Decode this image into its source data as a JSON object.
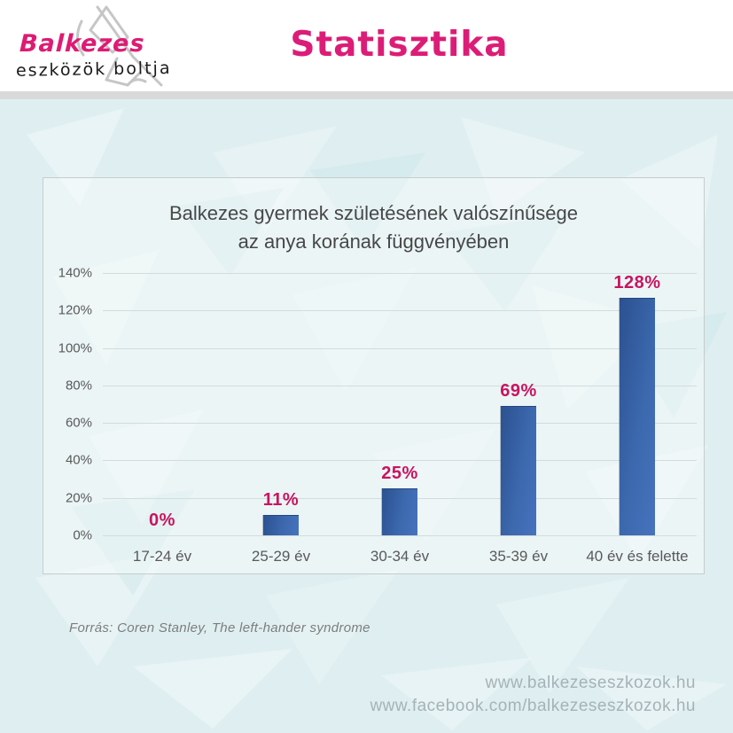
{
  "header": {
    "logo_line1": "Balkezes",
    "logo_line2": "eszközök boltja",
    "title": "Statisztika"
  },
  "icons": {
    "logo_sketch": "hand-with-pen-sketch"
  },
  "chart_data": {
    "type": "bar",
    "title_line1": "Balkezes gyermek születésének valószínűsége",
    "title_line2": "az anya korának függvényében",
    "categories": [
      "17-24 év",
      "25-29 év",
      "30-34 év",
      "35-39 év",
      "40 év és felette"
    ],
    "values": [
      0,
      11,
      25,
      69,
      128
    ],
    "value_labels": [
      "0%",
      "11%",
      "25%",
      "69%",
      "128%"
    ],
    "y_ticks": [
      "140%",
      "120%",
      "100%",
      "80%",
      "60%",
      "40%",
      "20%",
      "0%"
    ],
    "ylim": [
      0,
      140
    ],
    "grid": true,
    "legend": "none",
    "xlabel": "",
    "ylabel": "",
    "bar_color": "#3a67b1",
    "value_label_color": "#c8145f"
  },
  "source_note": "Forrás: Coren Stanley, The left-hander syndrome",
  "footer": {
    "line1": "www.balkezeseszkozok.hu",
    "line2": "www.facebook.com/balkezeseszkozok.hu"
  },
  "colors": {
    "accent_pink": "#dc1d77",
    "background_teal": "#dfeff1",
    "bar_blue": "#3a67b1"
  }
}
